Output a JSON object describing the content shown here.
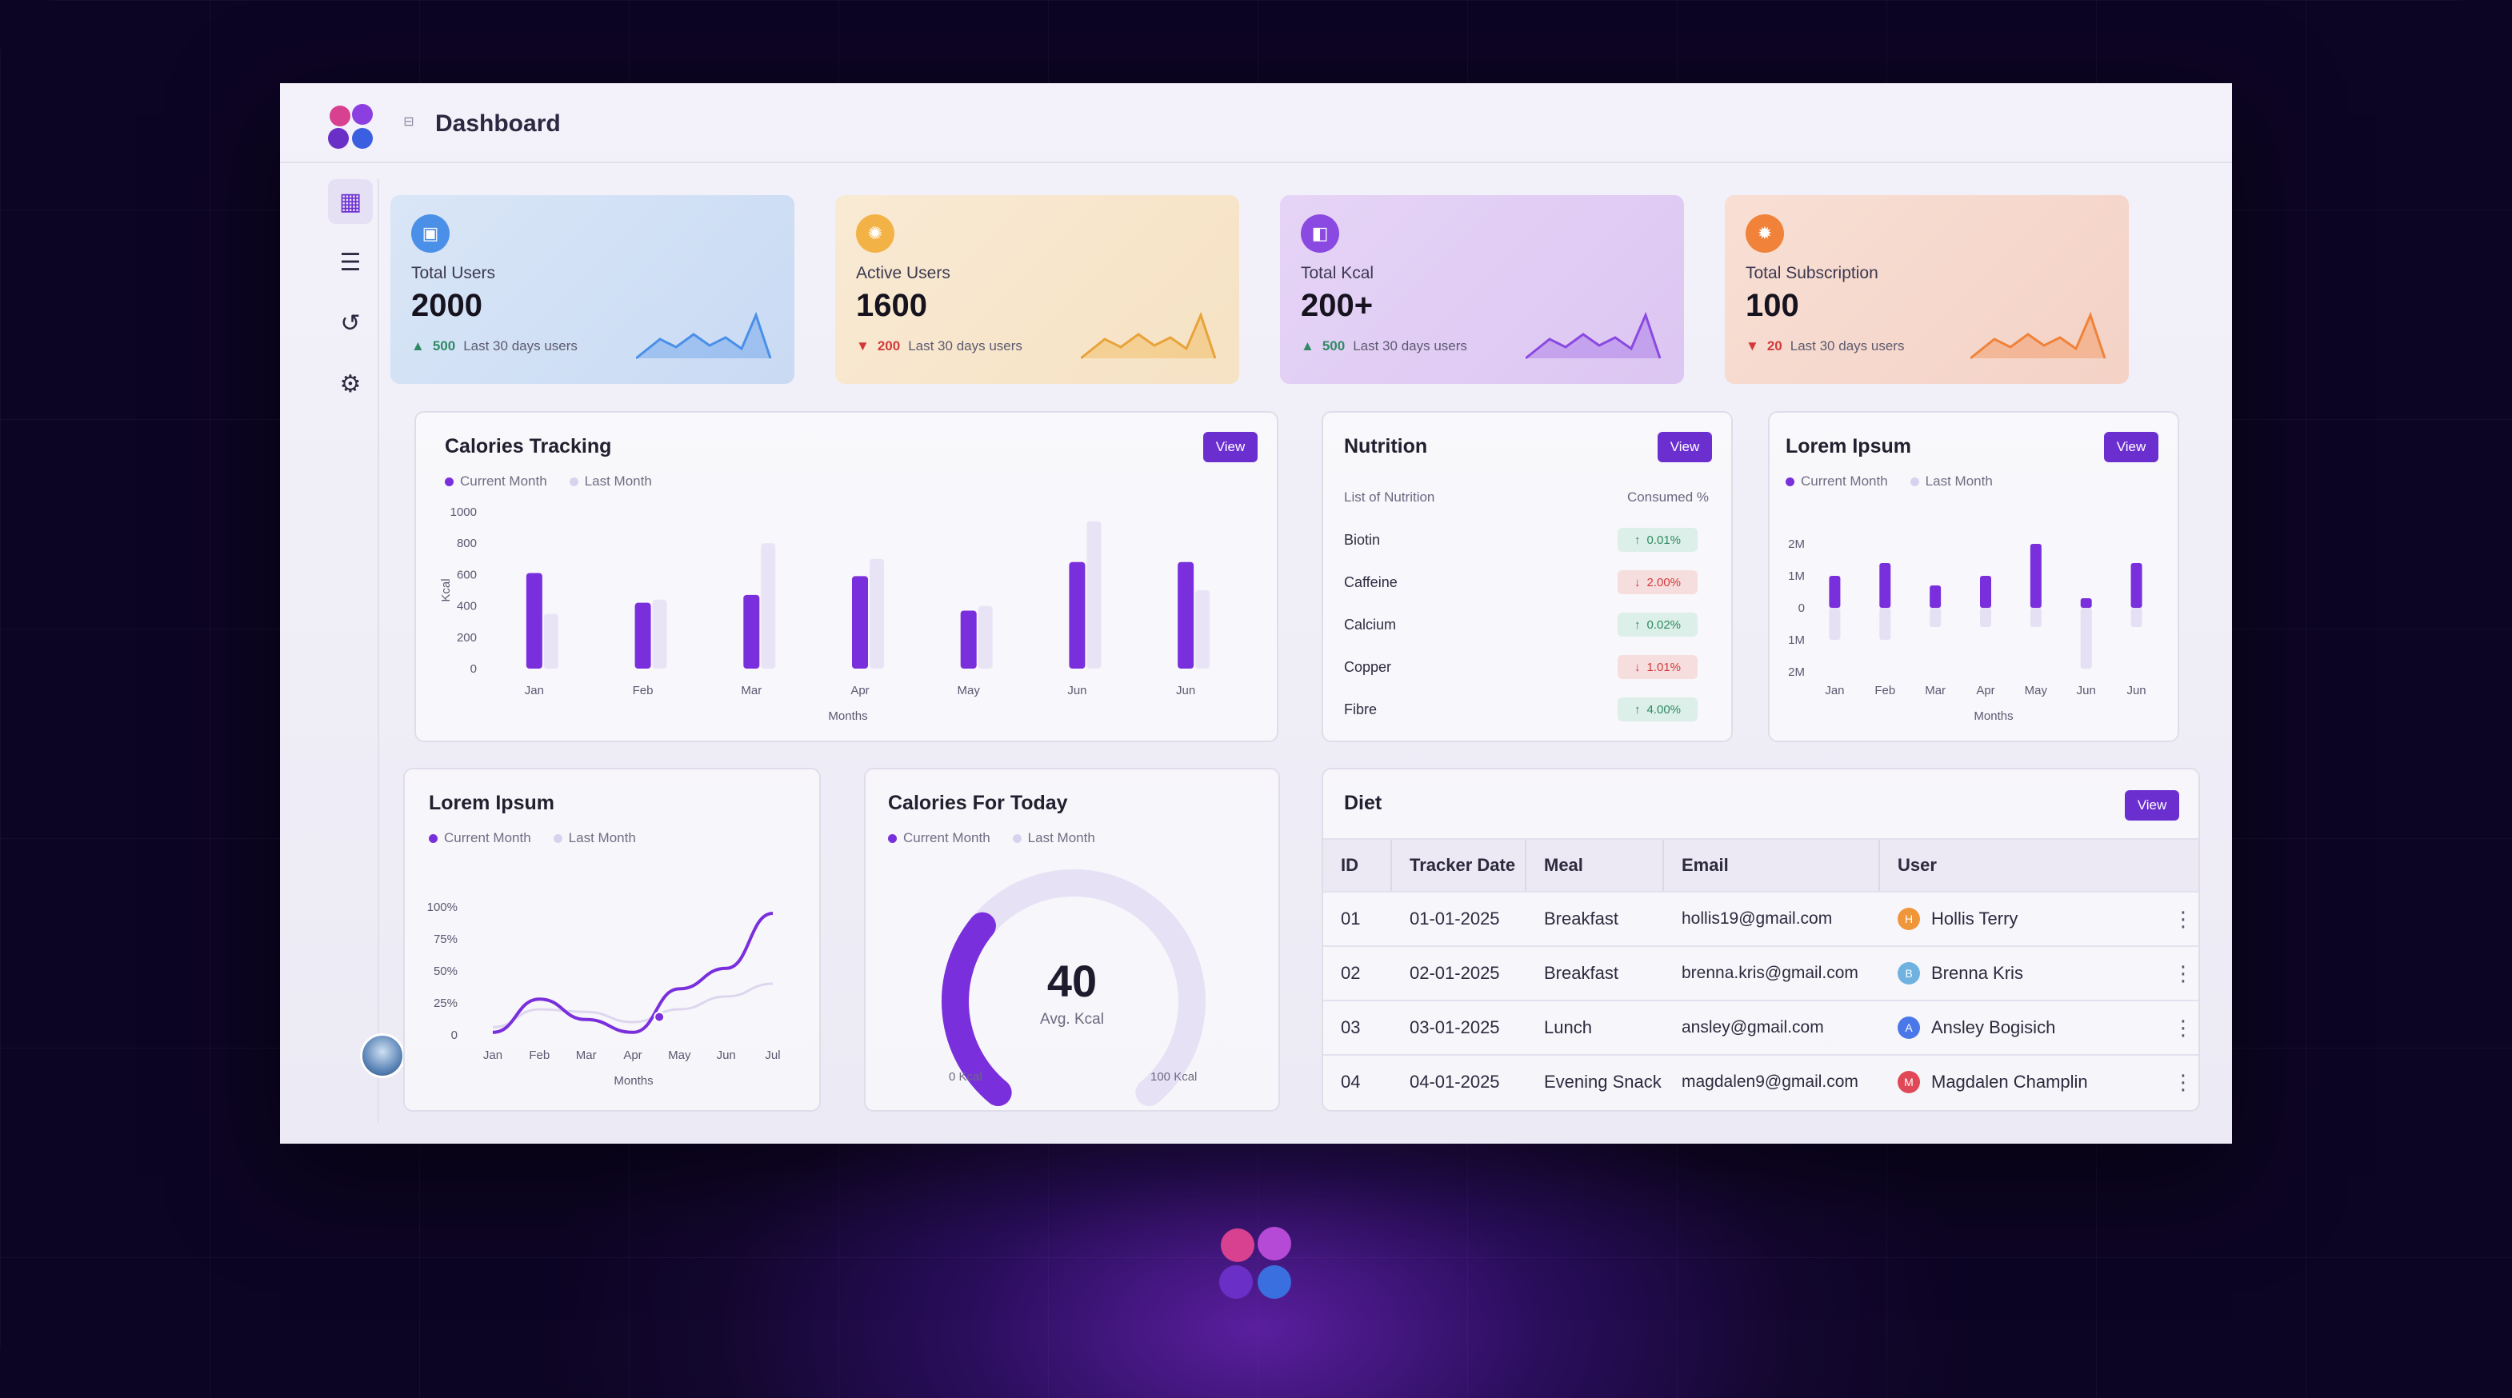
{
  "header": {
    "title": "Dashboard",
    "collapse_icon": "sidebar-toggle-icon"
  },
  "sidebar": {
    "items": [
      {
        "icon": "dashboard-icon",
        "active": true
      },
      {
        "icon": "list-icon",
        "active": false
      },
      {
        "icon": "history-icon",
        "active": false
      },
      {
        "icon": "settings-icon",
        "active": false
      }
    ]
  },
  "stats": [
    {
      "label": "Total Users",
      "value": "2000",
      "delta": "500",
      "direction": "up",
      "foot": "Last 30 days users",
      "color": "#4a8fe8",
      "icon": "users-icon"
    },
    {
      "label": "Active Users",
      "value": "1600",
      "delta": "200",
      "direction": "down",
      "foot": "Last 30 days users",
      "color": "#f2b246",
      "icon": "active-users-icon"
    },
    {
      "label": "Total Kcal",
      "value": "200+",
      "delta": "500",
      "direction": "up",
      "foot": "Last 30 days users",
      "color": "#8a49e0",
      "icon": "kcal-icon"
    },
    {
      "label": "Total Subscription",
      "value": "100",
      "delta": "20",
      "direction": "down",
      "foot": "Last 30 days users",
      "color": "#f0823a",
      "icon": "subscription-icon"
    }
  ],
  "calories_tracking": {
    "title": "Calories Tracking",
    "view": "View",
    "legend": [
      "Current Month",
      "Last Month"
    ],
    "chart_data": {
      "type": "bar",
      "categories": [
        "Jan",
        "Feb",
        "Mar",
        "Apr",
        "May",
        "Jun",
        "Jun"
      ],
      "series": [
        {
          "name": "Current Month",
          "values": [
            610,
            420,
            470,
            590,
            370,
            680,
            680
          ]
        },
        {
          "name": "Last Month",
          "values": [
            350,
            440,
            800,
            700,
            400,
            940,
            500
          ]
        }
      ],
      "xlabel": "Months",
      "ylabel": "Kcal",
      "ylim": [
        0,
        1000
      ],
      "yticks": [
        "1000",
        "800",
        "600",
        "400",
        "200",
        "0"
      ]
    }
  },
  "nutrition": {
    "title": "Nutrition",
    "view": "View",
    "col_left": "List of Nutrition",
    "col_right": "Consumed %",
    "rows": [
      {
        "name": "Biotin",
        "value": "0.01%",
        "dir": "up"
      },
      {
        "name": "Caffeine",
        "value": "2.00%",
        "dir": "down"
      },
      {
        "name": "Calcium",
        "value": "0.02%",
        "dir": "up"
      },
      {
        "name": "Copper",
        "value": "1.01%",
        "dir": "down"
      },
      {
        "name": "Fibre",
        "value": "4.00%",
        "dir": "up"
      }
    ]
  },
  "lorem_bar": {
    "title": "Lorem Ipsum",
    "view": "View",
    "legend": [
      "Current Month",
      "Last Month"
    ],
    "chart_data": {
      "type": "bar",
      "categories": [
        "Jan",
        "Feb",
        "Mar",
        "Apr",
        "May",
        "Jun",
        "Jun"
      ],
      "series": [
        {
          "name": "Current Month",
          "values": [
            1.0,
            1.4,
            0.7,
            1.0,
            2.0,
            0.3,
            1.4
          ]
        },
        {
          "name": "Last Month",
          "values": [
            -1.0,
            -1.0,
            -0.6,
            -0.6,
            -0.6,
            -1.9,
            -0.6
          ]
        }
      ],
      "xlabel": "Months",
      "yticks": [
        "2M",
        "1M",
        "0",
        "1M",
        "2M"
      ],
      "ylim": [
        -2,
        2
      ]
    }
  },
  "lorem_line": {
    "title": "Lorem Ipsum",
    "legend": [
      "Current Month",
      "Last Month"
    ],
    "chart_data": {
      "type": "line",
      "x": [
        "Jan",
        "Feb",
        "Mar",
        "Apr",
        "May",
        "Jun",
        "Jul"
      ],
      "series": [
        {
          "name": "Current Month",
          "values": [
            2,
            28,
            12,
            2,
            36,
            52,
            95
          ]
        },
        {
          "name": "Last Month",
          "values": [
            6,
            20,
            18,
            10,
            20,
            30,
            40
          ]
        }
      ],
      "xlabel": "Months",
      "yticks": [
        "100%",
        "75%",
        "50%",
        "25%",
        "0"
      ],
      "ylim": [
        0,
        100
      ]
    }
  },
  "calories_today": {
    "title": "Calories For Today",
    "legend": [
      "Current Month",
      "Last Month"
    ],
    "value": "40",
    "unit": "Avg. Kcal",
    "min_label": "0 Kcal",
    "max_label": "100 Kcal",
    "fraction": 0.4
  },
  "diet": {
    "title": "Diet",
    "view": "View",
    "columns": [
      "ID",
      "Tracker Date",
      "Meal",
      "Email",
      "User"
    ],
    "rows": [
      {
        "id": "01",
        "date": "01-01-2025",
        "meal": "Breakfast",
        "email": "hollis19@gmail.com",
        "initial": "H",
        "user": "Hollis Terry",
        "color": "#f0963a"
      },
      {
        "id": "02",
        "date": "02-01-2025",
        "meal": "Breakfast",
        "email": "brenna.kris@gmail.com",
        "initial": "B",
        "user": "Brenna Kris",
        "color": "#6fb2e0"
      },
      {
        "id": "03",
        "date": "03-01-2025",
        "meal": "Lunch",
        "email": "ansley@gmail.com",
        "initial": "A",
        "user": "Ansley Bogisich",
        "color": "#4a78e8"
      },
      {
        "id": "04",
        "date": "04-01-2025",
        "meal": "Evening Snack",
        "email": "magdalen9@gmail.com",
        "initial": "M",
        "user": "Magdalen Champlin",
        "color": "#e04858"
      }
    ]
  }
}
